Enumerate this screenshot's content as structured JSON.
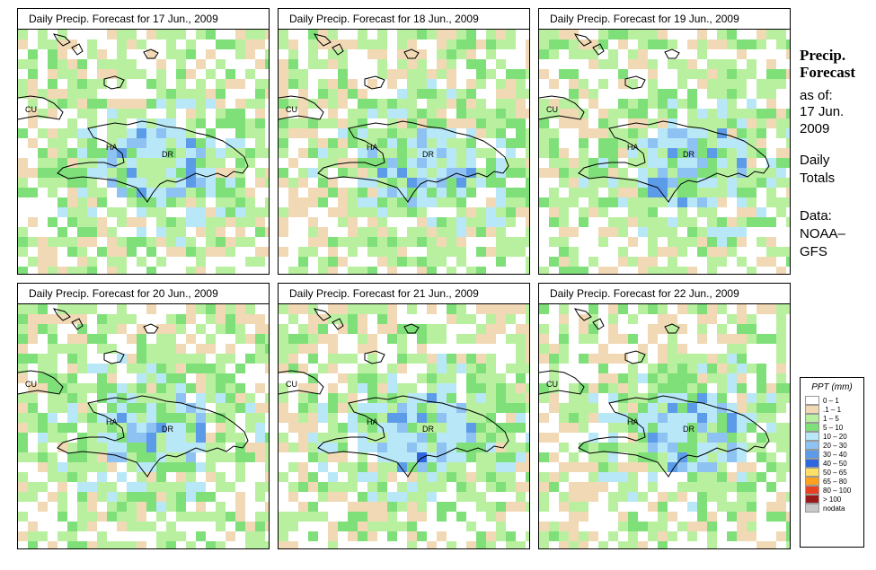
{
  "panels": [
    {
      "title": "Daily Precip. Forecast for  17 Jun., 2009"
    },
    {
      "title": "Daily Precip. Forecast for  18 Jun., 2009"
    },
    {
      "title": "Daily Precip. Forecast for  19 Jun., 2009"
    },
    {
      "title": "Daily Precip. Forecast for  20 Jun., 2009"
    },
    {
      "title": "Daily Precip. Forecast for  21 Jun., 2009"
    },
    {
      "title": "Daily Precip. Forecast for  22 Jun., 2009"
    }
  ],
  "map_labels": {
    "cu": "CU",
    "ha": "HA",
    "dr": "DR"
  },
  "side": {
    "heading1": "Precip.",
    "heading2": "Forecast",
    "asof1": "as of:",
    "asof2": "17 Jun.",
    "asof3": "2009",
    "totals1": "Daily",
    "totals2": "Totals",
    "data1": "Data:",
    "data2": "NOAA–",
    "data3": "GFS"
  },
  "legend": {
    "title": "PPT (mm)",
    "items": [
      {
        "label": "0 – 1",
        "color": "#ffffff"
      },
      {
        "label": ".1 – 1",
        "color": "#f1d9b5"
      },
      {
        "label": "1 – 5",
        "color": "#b9f0a0"
      },
      {
        "label": "5 – 10",
        "color": "#7fe07a"
      },
      {
        "label": "10 – 20",
        "color": "#b8e8f8"
      },
      {
        "label": "20 – 30",
        "color": "#8ec2f2"
      },
      {
        "label": "30 – 40",
        "color": "#5c9be8"
      },
      {
        "label": "40 – 50",
        "color": "#2e66e0"
      },
      {
        "label": "50 – 65",
        "color": "#ffe066"
      },
      {
        "label": "65 – 80",
        "color": "#ffa01e"
      },
      {
        "label": "80 – 100",
        "color": "#e84020"
      },
      {
        "label": "> 100",
        "color": "#9a1a1a"
      },
      {
        "label": "nodata",
        "color": "#c8c8c8"
      }
    ]
  }
}
